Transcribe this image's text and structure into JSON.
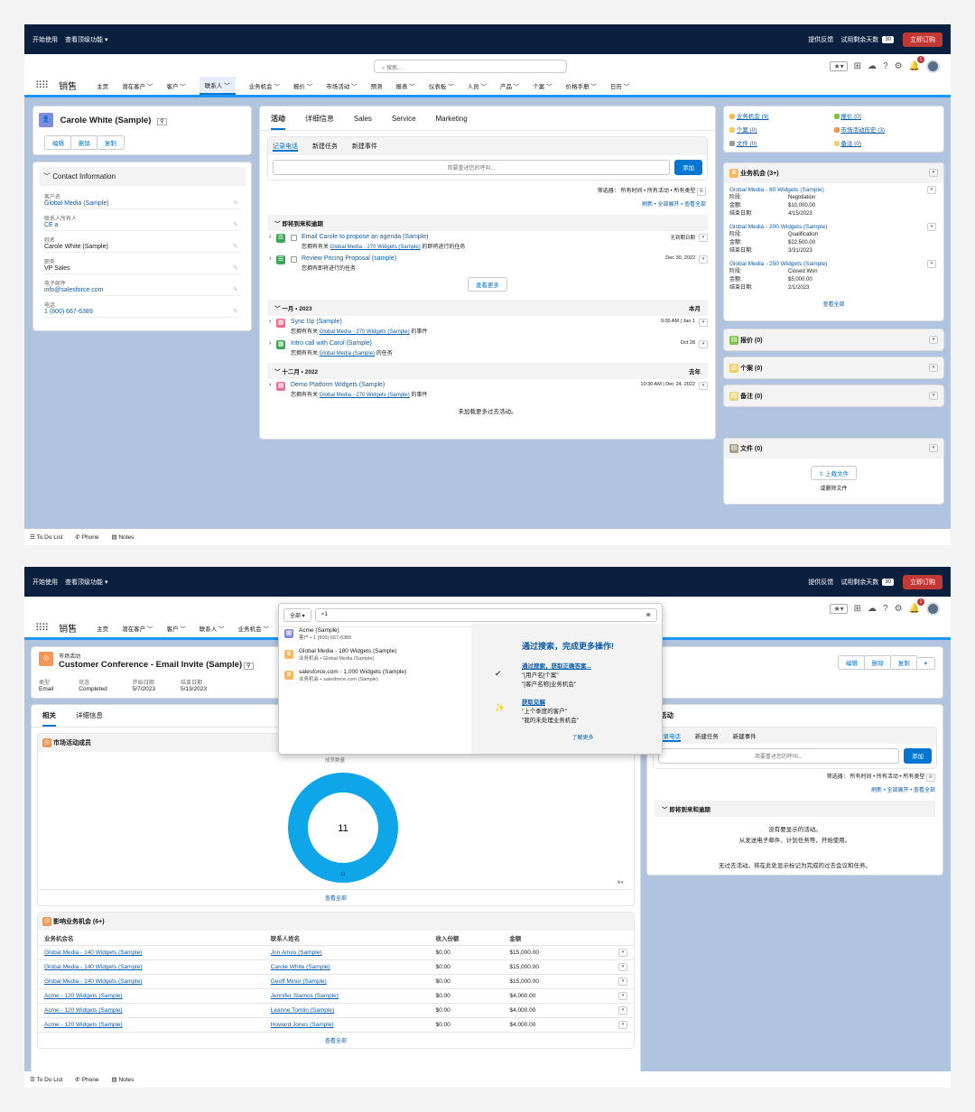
{
  "top": {
    "start": "开始使用",
    "advanced": "查看顶级功能 ▾",
    "feedback": "提供反馈",
    "trial": "试用剩余天数",
    "days": "30",
    "buy": "立即订购"
  },
  "search_placeholder": "搜索...",
  "app_name": "销售",
  "nav": [
    "主页",
    "潜在客户 ﹀",
    "客户 ﹀",
    "联系人 ﹀",
    "业务机会 ﹀",
    "报价 ﹀",
    "市场活动 ﹀",
    "预测",
    "报表 ﹀",
    "仪表板 ﹀",
    "人员 ﹀",
    "产品 ﹀",
    "个案 ﹀",
    "价格手册 ﹀",
    "日历 ﹀"
  ],
  "contact": {
    "name": "Carole White (Sample)",
    "actions": [
      "编辑",
      "删除",
      "复制"
    ],
    "section": "Contact Information",
    "fields": [
      {
        "label": "客户名",
        "value": "Global Media (Sample)",
        "link": true
      },
      {
        "label": "联系人所有人",
        "value": "CE a",
        "link": true
      },
      {
        "label": "姓名",
        "value": "Carole White (Sample)",
        "link": false
      },
      {
        "label": "职务",
        "value": "VP Sales",
        "link": false
      },
      {
        "label": "电子邮件",
        "value": "info@salesforce.com",
        "link": true
      },
      {
        "label": "电话",
        "value": "1 (800) 667-6389",
        "link": true
      }
    ]
  },
  "activity": {
    "tabs": [
      "活动",
      "详细信息",
      "Sales",
      "Service",
      "Marketing"
    ],
    "subtabs": [
      "记录电话",
      "新建任务",
      "新建事件"
    ],
    "input_placeholder": "简要重述您的呼叫...",
    "add": "添加",
    "filter": "筛选器： 所有时间 • 所有活动 • 所有类型",
    "links": "刷新 • 全部展开 • 查看全部",
    "upcoming": "即将到来和逾期",
    "view_more": "查看更多",
    "no_more": "未加载更多过去活动。",
    "items1": [
      {
        "title": "Email Carole to propose an agenda (Sample)",
        "sub_a": "您拥有有关 ",
        "sub_link": "Global Media - 270 Widgets (Sample)",
        "sub_b": " 的即将进行的任务",
        "date": "无到期日期",
        "overdue": false
      },
      {
        "title": "Review Pricing Proposal (sample)",
        "sub_a": "您拥有即将进行的任务",
        "sub_link": "",
        "sub_b": "",
        "date": "Dec 30, 2022",
        "overdue": true
      }
    ],
    "month1": "一月 • 2023",
    "month1_right": "本月",
    "items2": [
      {
        "title": "Sync Up (Sample)",
        "sub_a": "您拥有有关 ",
        "sub_link": "Global Media - 270 Widgets (Sample)",
        "sub_b": " 的事件",
        "date": "9:00 AM | Jan 1"
      },
      {
        "title": "Intro call with Carol (Sample)",
        "sub_a": "您拥有有关 ",
        "sub_link": "Global Media (Sample)",
        "sub_b": " 的任务",
        "date": "Oct 28"
      }
    ],
    "month2": "十二月 • 2022",
    "month2_right": "去年",
    "items3": [
      {
        "title": "Demo Platform Widgets (Sample)",
        "sub_a": "您拥有有关 ",
        "sub_link": "Global Media - 270 Widgets (Sample)",
        "sub_b": " 的事件",
        "date": "10:30 AM | Dec 24, 2022"
      }
    ]
  },
  "related": {
    "quick": [
      "业务机会 (9)",
      "报价 (0)",
      "个案 (0)",
      "市场活动历史 (3)",
      "文件 (0)",
      "备注 (0)"
    ],
    "opps_title": "业务机会 (3+)",
    "opps": [
      {
        "name": "Global Media - 80 Widgets (Sample)",
        "stage": "Negotiation",
        "amount": "$10,000.00",
        "close": "4/15/2023"
      },
      {
        "name": "Global Media - 200 Widgets (Sample)",
        "stage": "Qualification",
        "amount": "$22,500.00",
        "close": "3/31/2023"
      },
      {
        "name": "Global Media - 250 Widgets (Sample)",
        "stage": "Closed Won",
        "amount": "$5,000.00",
        "close": "2/1/2023"
      }
    ],
    "stage_l": "阶段:",
    "amount_l": "金额:",
    "close_l": "结束日期:",
    "view_all": "查看全部",
    "others": [
      "报价 (0)",
      "个案 (0)",
      "备注 (0)",
      "文件 (0)"
    ],
    "upload": "上载文件",
    "drop": "或删除文件"
  },
  "footer": [
    "To Do List",
    "Phone",
    "Notes"
  ],
  "s2": {
    "type": "市场活动",
    "title": "Customer Conference - Email Invite (Sample)",
    "actions": [
      "编辑",
      "删除",
      "复制"
    ],
    "fields": [
      {
        "label": "类型",
        "value": "Email"
      },
      {
        "label": "状态",
        "value": "Completed"
      },
      {
        "label": "开始日期",
        "value": "5/7/2023"
      },
      {
        "label": "结束日期",
        "value": "5/13/2023"
      }
    ],
    "tabs": [
      "相关",
      "详细信息"
    ],
    "members": "市场活动成员",
    "chart_label": "成员数量",
    "view_all": "查看全部",
    "infl_title": "影响业务机会 (6+)",
    "cols": [
      "业务机会名",
      "联系人姓名",
      "收入份额",
      "金额"
    ],
    "rows": [
      [
        "Global Media - 140 Widgets (Sample)",
        "Jon Amos (Sample)",
        "$0.00",
        "$15,000.00"
      ],
      [
        "Global Media - 140 Widgets (Sample)",
        "Carole White (Sample)",
        "$0.00",
        "$15,000.00"
      ],
      [
        "Global Media - 140 Widgets (Sample)",
        "Geoff Minor (Sample)",
        "$0.00",
        "$15,000.00"
      ],
      [
        "Acme - 120 Widgets (Sample)",
        "Jennifer Stamos (Sample)",
        "$0.00",
        "$4,000.00"
      ],
      [
        "Acme - 120 Widgets (Sample)",
        "Leanne Tomlin (Sample)",
        "$0.00",
        "$4,000.00"
      ],
      [
        "Acme - 120 Widgets (Sample)",
        "Howard Jones (Sample)",
        "$0.00",
        "$4,000.00"
      ]
    ],
    "act_title": "活动",
    "no_activity": "没有要显示的活动。",
    "no_activity2": "从发送电子邮件、计划任务等，开始使用。",
    "no_past": "无过去活动。将在此处显示标记为完成的过去会议和任务。",
    "search": {
      "scope": "全部",
      "query": "1",
      "results": [
        {
          "name": "Acme (Sample)",
          "sub": "客户 • 1 (800) 667-6389"
        },
        {
          "name": "Global Media - 180 Widgets (Sample)",
          "sub": "业务机会 • Global Media (Sample)"
        },
        {
          "name": "salesforce.com - 1,000 Widgets (Sample)",
          "sub": "业务机会 • salesforce.com (Sample)"
        }
      ],
      "promo": "通过搜索，完成更多操作!",
      "tip1": "通过搜索，获取正确答案...",
      "tip1a": "\"[用户名]个案\"",
      "tip1b": "\"[客户名称]业务机会\"",
      "tip2": "获取见解",
      "tip2a": "\"上个季度的客户\"",
      "tip2b": "\"我的未处理业务机会\"",
      "learn": "了解更多"
    }
  },
  "chart_data": {
    "type": "pie",
    "title": "",
    "values": [
      11
    ],
    "total": "11",
    "labels": [
      "11"
    ],
    "colors": [
      "#0ea5e9"
    ]
  }
}
